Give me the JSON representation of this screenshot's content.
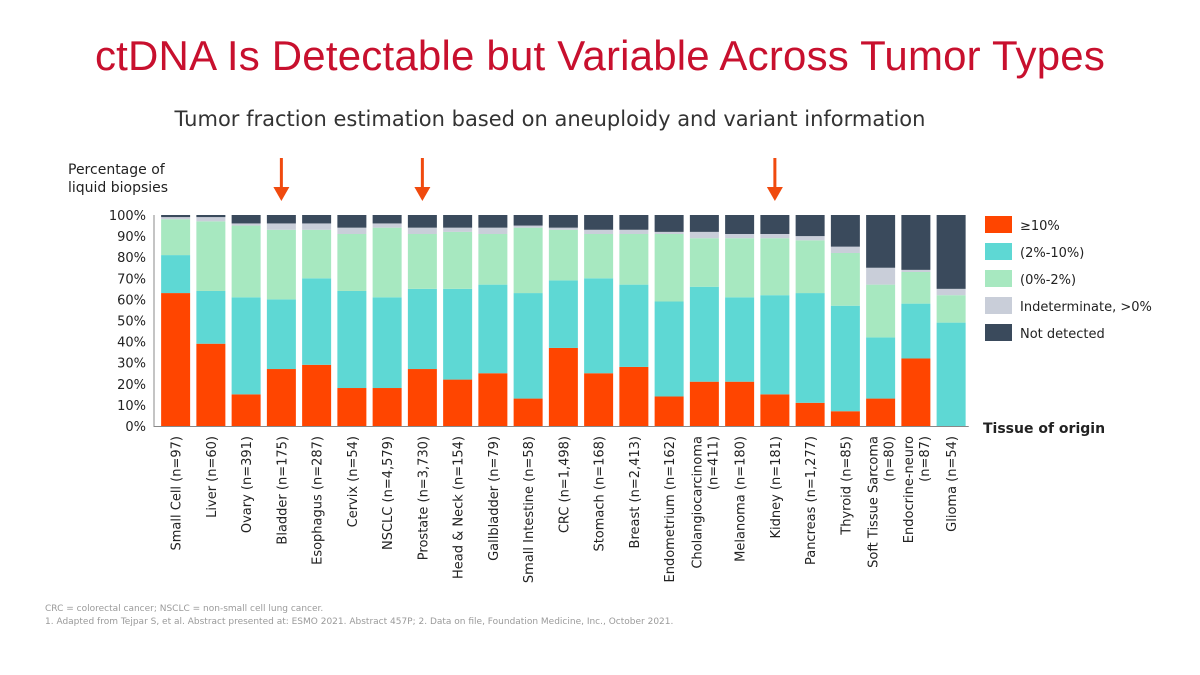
{
  "slide": {
    "title": "ctDNA Is Detectable but Variable Across Tumor Types",
    "subtitle": "Tumor fraction estimation based on aneuploidy and variant information",
    "footnotes": [
      "CRC = colorectal cancer; NSCLC = non-small cell lung cancer.",
      "1. Adapted from Tejpar S, et al. Abstract presented at: ESMO 2021. Abstract 457P; 2. Data on file, Foundation Medicine, Inc., October 2021."
    ]
  },
  "chart_data": {
    "type": "bar",
    "stacked": true,
    "ylabel": "Percentage of\nliquid biopsies",
    "xlabel": "Tissue of origin",
    "ylim": [
      0,
      100
    ],
    "yticks": [
      "0%",
      "10%",
      "20%",
      "30%",
      "40%",
      "50%",
      "60%",
      "70%",
      "80%",
      "90%",
      "100%"
    ],
    "legend_position": "right",
    "categories": [
      [
        "Small Cell (n=97)"
      ],
      [
        "Liver (n=60)"
      ],
      [
        "Ovary (n=391)"
      ],
      [
        "Bladder (n=175)"
      ],
      [
        "Esophagus (n=287)"
      ],
      [
        "Cervix (n=54)"
      ],
      [
        "NSCLC (n=4,579)"
      ],
      [
        "Prostate (n=3,730)"
      ],
      [
        "Head & Neck (n=154)"
      ],
      [
        "Gallbladder (n=79)"
      ],
      [
        "Small Intestine (n=58)"
      ],
      [
        "CRC (n=1,498)"
      ],
      [
        "Stomach (n=168)"
      ],
      [
        "Breast (n=2,413)"
      ],
      [
        "Endometrium (n=162)"
      ],
      [
        "Cholangiocarcinoma",
        "(n=411)"
      ],
      [
        "Melanoma (n=180)"
      ],
      [
        "Kidney (n=181)"
      ],
      [
        "Pancreas (n=1,277)"
      ],
      [
        "Thyroid (n=85)"
      ],
      [
        "Soft Tissue Sarcoma",
        "(n=80)"
      ],
      [
        "Endocrine-neuro",
        "(n=87)"
      ],
      [
        "Glioma (n=54)"
      ]
    ],
    "highlighted_categories": [
      "Bladder (n=175)",
      "Prostate (n=3,730)",
      "Kidney (n=181)"
    ],
    "series": [
      {
        "name": "≥10%",
        "color": "#ff4500",
        "values": [
          63,
          39,
          15,
          27,
          29,
          18,
          18,
          27,
          22,
          25,
          13,
          37,
          25,
          28,
          14,
          21,
          21,
          15,
          11,
          7,
          13,
          32,
          0
        ]
      },
      {
        "name": "(2%-10%)",
        "color": "#5ed8d4",
        "values": [
          18,
          25,
          46,
          33,
          41,
          46,
          43,
          38,
          43,
          42,
          50,
          32,
          45,
          39,
          45,
          45,
          40,
          47,
          52,
          50,
          29,
          26,
          49
        ]
      },
      {
        "name": "(0%-2%)",
        "color": "#a7e8c0",
        "values": [
          17,
          33,
          34,
          33,
          23,
          27,
          33,
          26,
          27,
          24,
          31,
          24,
          21,
          24,
          32,
          23,
          28,
          27,
          25,
          25,
          25,
          15,
          13
        ]
      },
      {
        "name": "Indeterminate, >0%",
        "color": "#c9ced9",
        "values": [
          1,
          2,
          1,
          3,
          3,
          3,
          2,
          3,
          2,
          3,
          1,
          1,
          2,
          2,
          1,
          3,
          2,
          2,
          2,
          3,
          8,
          1,
          3
        ]
      },
      {
        "name": "Not detected",
        "color": "#3a4a5c",
        "values": [
          1,
          1,
          4,
          4,
          4,
          6,
          4,
          6,
          6,
          6,
          5,
          6,
          7,
          7,
          8,
          8,
          9,
          9,
          10,
          15,
          25,
          26,
          35
        ]
      }
    ]
  }
}
